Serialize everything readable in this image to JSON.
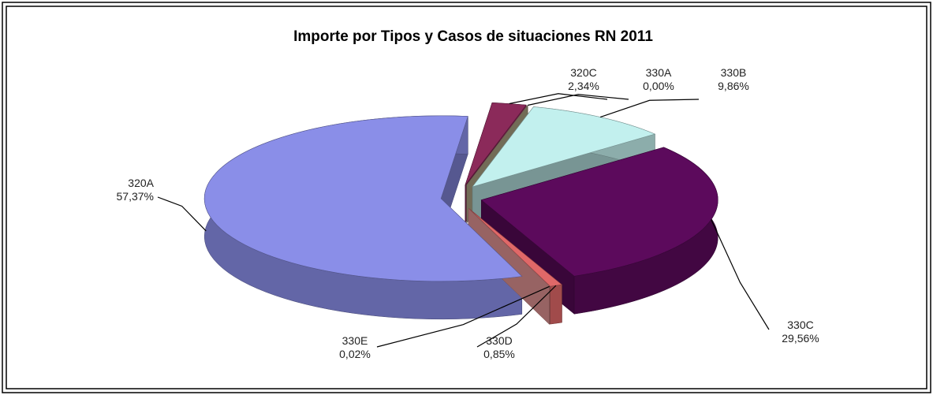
{
  "chart_data": {
    "type": "pie3d",
    "title": "Importe por Tipos y Casos de situaciones RN 2011",
    "categories": [
      "320A",
      "320C",
      "330A",
      "330B",
      "330C",
      "330D",
      "330E"
    ],
    "values": [
      57.37,
      2.34,
      0.0,
      9.86,
      29.56,
      0.85,
      0.02
    ],
    "value_labels": [
      "57,37%",
      "2,34%",
      "0,00%",
      "9,86%",
      "29,56%",
      "0,85%",
      "0,02%"
    ],
    "colors": [
      "#8a8ee8",
      "#8b2a5a",
      "#b8ae8c",
      "#c2f0ee",
      "#5c0a5c",
      "#e06868",
      "#f4a0a0"
    ]
  }
}
